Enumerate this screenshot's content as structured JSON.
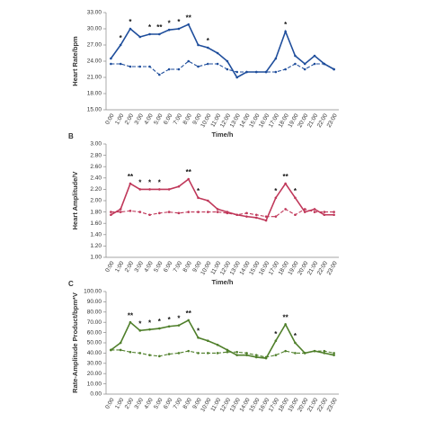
{
  "chart_data": [
    {
      "type": "line",
      "y_label": "Heart Rate/bpm",
      "x_label": "Time/h",
      "categories": [
        "0:00",
        "1:00",
        "2:00",
        "3:00",
        "4:00",
        "5:00",
        "6:00",
        "7:00",
        "8:00",
        "9:00",
        "10:00",
        "11:00",
        "12:00",
        "13:00",
        "14:00",
        "15:00",
        "16:00",
        "17:00",
        "18:00",
        "19:00",
        "20:00",
        "21:00",
        "22:00",
        "23:00"
      ],
      "series": [
        {
          "color": "#1f4e9c",
          "dash": false,
          "values": [
            24.5,
            27,
            30,
            28.5,
            29,
            29,
            29.8,
            30,
            30.8,
            27,
            26.5,
            25.5,
            24,
            21,
            22,
            22,
            22,
            24.5,
            29.5,
            25,
            23.5,
            25,
            23.5,
            22.5
          ]
        },
        {
          "color": "#1f4e9c",
          "dash": true,
          "values": [
            23.5,
            23.5,
            23,
            23,
            23,
            21.5,
            22.5,
            22.5,
            24,
            23,
            23.5,
            23.5,
            22.5,
            22,
            22,
            22,
            22,
            22,
            22.5,
            23.5,
            22.5,
            23.5,
            23.5,
            22.5
          ]
        }
      ],
      "ylim": [
        15,
        33
      ],
      "yticks": [
        {
          "value": 15,
          "label": "15.00"
        },
        {
          "value": 18,
          "label": "18.00"
        },
        {
          "value": 21,
          "label": "21.00"
        },
        {
          "value": 24,
          "label": "24.00"
        },
        {
          "value": 27,
          "label": "27.00"
        },
        {
          "value": 30,
          "label": "30.00"
        },
        {
          "value": 33,
          "label": "33.00"
        }
      ],
      "annotations": [
        {
          "x": "1:00",
          "text": "*"
        },
        {
          "x": "2:00",
          "text": "*"
        },
        {
          "x": "4:00",
          "text": "*"
        },
        {
          "x": "5:00",
          "text": "**"
        },
        {
          "x": "6:00",
          "text": "*"
        },
        {
          "x": "7:00",
          "text": "*"
        },
        {
          "x": "8:00",
          "text": "**"
        },
        {
          "x": "10:00",
          "text": "*"
        },
        {
          "x": "18:00",
          "text": "*"
        }
      ]
    },
    {
      "type": "line",
      "panel": "B",
      "y_label": "Heart Amplitude/V",
      "x_label": "Time/h",
      "categories": [
        "0:00",
        "1:00",
        "2:00",
        "3:00",
        "4:00",
        "5:00",
        "6:00",
        "7:00",
        "8:00",
        "9:00",
        "10:00",
        "11:00",
        "12:00",
        "13:00",
        "14:00",
        "15:00",
        "16:00",
        "17:00",
        "18:00",
        "19:00",
        "20:00",
        "21:00",
        "22:00",
        "23:00"
      ],
      "series": [
        {
          "color": "#c0385a",
          "dash": false,
          "values": [
            1.75,
            1.85,
            2.3,
            2.2,
            2.2,
            2.2,
            2.2,
            2.25,
            2.38,
            2.05,
            2.0,
            1.85,
            1.8,
            1.75,
            1.72,
            1.7,
            1.65,
            2.05,
            2.3,
            2.05,
            1.8,
            1.85,
            1.75,
            1.75
          ]
        },
        {
          "color": "#c0385a",
          "dash": true,
          "values": [
            1.8,
            1.8,
            1.82,
            1.8,
            1.75,
            1.78,
            1.8,
            1.78,
            1.8,
            1.8,
            1.8,
            1.8,
            1.78,
            1.75,
            1.78,
            1.75,
            1.72,
            1.72,
            1.85,
            1.75,
            1.85,
            1.8,
            1.8,
            1.8
          ]
        }
      ],
      "ylim": [
        1,
        3
      ],
      "yticks": [
        {
          "value": 1,
          "label": "1.00"
        },
        {
          "value": 1.2,
          "label": "1.20"
        },
        {
          "value": 1.4,
          "label": "1.40"
        },
        {
          "value": 1.6,
          "label": "1.60"
        },
        {
          "value": 1.8,
          "label": "1.80"
        },
        {
          "value": 2,
          "label": "2.00"
        },
        {
          "value": 2.2,
          "label": "2.20"
        },
        {
          "value": 2.4,
          "label": "2.40"
        },
        {
          "value": 2.6,
          "label": "2.60"
        },
        {
          "value": 2.8,
          "label": "2.80"
        },
        {
          "value": 3,
          "label": "3.00"
        }
      ],
      "annotations": [
        {
          "x": "2:00",
          "text": "**"
        },
        {
          "x": "3:00",
          "text": "*"
        },
        {
          "x": "4:00",
          "text": "*"
        },
        {
          "x": "5:00",
          "text": "*"
        },
        {
          "x": "8:00",
          "text": "**"
        },
        {
          "x": "9:00",
          "text": "*"
        },
        {
          "x": "17:00",
          "text": "*"
        },
        {
          "x": "18:00",
          "text": "**"
        },
        {
          "x": "19:00",
          "text": "*"
        }
      ]
    },
    {
      "type": "line",
      "panel": "C",
      "y_label": "Rate-Amplitude Product/bpm*V",
      "categories": [
        "0:00",
        "1:00",
        "2:00",
        "3:00",
        "4:00",
        "5:00",
        "6:00",
        "7:00",
        "8:00",
        "9:00",
        "10:00",
        "11:00",
        "12:00",
        "13:00",
        "14:00",
        "15:00",
        "16:00",
        "17:00",
        "18:00",
        "19:00",
        "20:00",
        "21:00",
        "22:00",
        "23:00"
      ],
      "series": [
        {
          "color": "#4f7f2a",
          "dash": false,
          "values": [
            43,
            50,
            70,
            62,
            63,
            64,
            66,
            67,
            72,
            55,
            52,
            48,
            43,
            38,
            38,
            36,
            35,
            52,
            68,
            50,
            40,
            42,
            40,
            38
          ]
        },
        {
          "color": "#4f7f2a",
          "dash": true,
          "values": [
            43,
            43,
            41,
            40,
            38,
            37,
            39,
            40,
            42,
            40,
            40,
            40,
            41,
            41,
            40,
            38,
            36,
            38,
            42,
            40,
            40,
            42,
            42,
            40
          ]
        }
      ],
      "ylim": [
        0,
        100
      ],
      "yticks": [
        {
          "value": 0,
          "label": "0.00"
        },
        {
          "value": 10,
          "label": "10.00"
        },
        {
          "value": 20,
          "label": "20.00"
        },
        {
          "value": 30,
          "label": "30.00"
        },
        {
          "value": 40,
          "label": "40.00"
        },
        {
          "value": 50,
          "label": "50.00"
        },
        {
          "value": 60,
          "label": "60.00"
        },
        {
          "value": 70,
          "label": "70.00"
        },
        {
          "value": 80,
          "label": "80.00"
        },
        {
          "value": 90,
          "label": "90.00"
        },
        {
          "value": 100,
          "label": "100.00"
        }
      ],
      "annotations": [
        {
          "x": "2:00",
          "text": "**"
        },
        {
          "x": "3:00",
          "text": "*"
        },
        {
          "x": "4:00",
          "text": "*"
        },
        {
          "x": "5:00",
          "text": "*"
        },
        {
          "x": "6:00",
          "text": "*"
        },
        {
          "x": "7:00",
          "text": "*"
        },
        {
          "x": "8:00",
          "text": "**"
        },
        {
          "x": "9:00",
          "text": "*"
        },
        {
          "x": "17:00",
          "text": "*"
        },
        {
          "x": "18:00",
          "text": "**"
        },
        {
          "x": "19:00",
          "text": "*"
        }
      ]
    }
  ]
}
